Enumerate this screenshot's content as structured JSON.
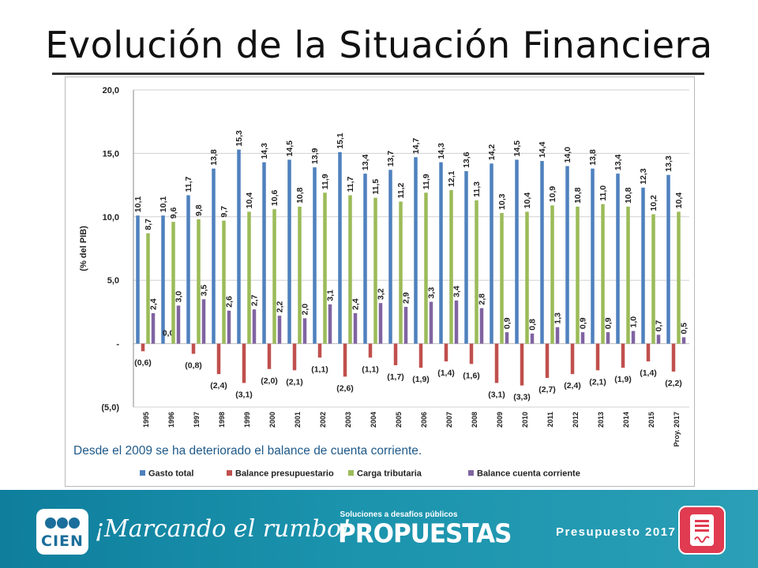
{
  "title": "Evolución de la Situación Financiera",
  "chart_data": {
    "type": "bar",
    "ylabel": "(% del PIB)",
    "ylim": [
      -5,
      20
    ],
    "y_ticks": [
      20,
      15,
      10,
      5,
      0,
      -5
    ],
    "y_tick_labels": [
      "20,0",
      "15,0",
      "10,0",
      "5,0",
      "-",
      "(5,0)"
    ],
    "grid": true,
    "legend_position": "bottom",
    "categories": [
      "1995",
      "1996",
      "1997",
      "1998",
      "1999",
      "2000",
      "2001",
      "2002",
      "2003",
      "2004",
      "2005",
      "2006",
      "2007",
      "2008",
      "2009",
      "2010",
      "2011",
      "2012",
      "2013",
      "2014",
      "2015",
      "Proy. 2017"
    ],
    "series": [
      {
        "name": "Gasto total",
        "color": "#4f81bd",
        "values": [
          10.1,
          10.1,
          11.7,
          13.8,
          15.3,
          14.3,
          14.5,
          13.9,
          15.1,
          13.4,
          13.7,
          14.7,
          14.3,
          13.6,
          14.2,
          14.5,
          14.4,
          14.0,
          13.8,
          13.4,
          12.3,
          13.3
        ],
        "labels": [
          "10,1",
          "10,1",
          "11,7",
          "13,8",
          "15,3",
          "14,3",
          "14,5",
          "13,9",
          "15,1",
          "13,4",
          "13,7",
          "14,7",
          "14,3",
          "13,6",
          "14,2",
          "14,5",
          "14,4",
          "14,0",
          "13,8",
          "13,4",
          "12,3",
          "13,3"
        ]
      },
      {
        "name": "Balance presupuestario",
        "color": "#c0504d",
        "values": [
          -0.6,
          0.0,
          -0.8,
          -2.4,
          -3.1,
          -2.0,
          -2.1,
          -1.1,
          -2.6,
          -1.1,
          -1.7,
          -1.9,
          -1.4,
          -1.6,
          -3.1,
          -3.3,
          -2.7,
          -2.4,
          -2.1,
          -1.9,
          -1.4,
          -2.2
        ],
        "labels": [
          "(0,6)",
          "0,0",
          "(0,8)",
          "(2,4)",
          "(3,1)",
          "(2,0)",
          "(2,1)",
          "(1,1)",
          "(2,6)",
          "(1,1)",
          "(1,7)",
          "(1,9)",
          "(1,4)",
          "(1,6)",
          "(3,1)",
          "(3,3)",
          "(2,7)",
          "(2,4)",
          "(2,1)",
          "(1,9)",
          "(1,4)",
          "(2,2)"
        ]
      },
      {
        "name": "Carga tributaria",
        "color": "#9bbb59",
        "values": [
          8.7,
          9.6,
          9.8,
          9.7,
          10.4,
          10.6,
          10.8,
          11.9,
          11.7,
          11.5,
          11.2,
          11.9,
          12.1,
          11.3,
          10.3,
          10.4,
          10.9,
          10.8,
          11.0,
          10.8,
          10.2,
          10.4
        ],
        "labels": [
          "8,7",
          "9,6",
          "9,8",
          "9,7",
          "10,4",
          "10,6",
          "10,8",
          "11,9",
          "11,7",
          "11,5",
          "11,2",
          "11,9",
          "12,1",
          "11,3",
          "10,3",
          "10,4",
          "10,9",
          "10,8",
          "11,0",
          "10,8",
          "10,2",
          "10,4"
        ]
      },
      {
        "name": "Balance cuenta corriente",
        "color": "#8064a2",
        "values": [
          2.4,
          3.0,
          3.5,
          2.6,
          2.7,
          2.2,
          2.0,
          3.1,
          2.4,
          3.2,
          2.9,
          3.3,
          3.4,
          2.8,
          0.9,
          0.8,
          1.3,
          0.9,
          0.9,
          1.0,
          0.7,
          0.5
        ],
        "labels": [
          "2,4",
          "3,0",
          "3,5",
          "2,6",
          "2,7",
          "2,2",
          "2,0",
          "3,1",
          "2,4",
          "3,2",
          "2,9",
          "3,3",
          "3,4",
          "2,8",
          "0,9",
          "0,8",
          "1,3",
          "0,9",
          "0,9",
          "1,0",
          "0,7",
          "0,5"
        ]
      }
    ],
    "annotation": "Desde el 2009 se ha deteriorado el balance de cuenta corriente."
  },
  "footer": {
    "logo_text": "CIEN",
    "slogan": "¡Marcando el rumbo!",
    "propuestas_sub": "Soluciones a desafíos públicos",
    "propuestas_main": "PROPUESTAS",
    "presupuesto": "Presupuesto 2017",
    "colors": {
      "background": "#1b93ad",
      "icon": "#e03b50"
    }
  }
}
